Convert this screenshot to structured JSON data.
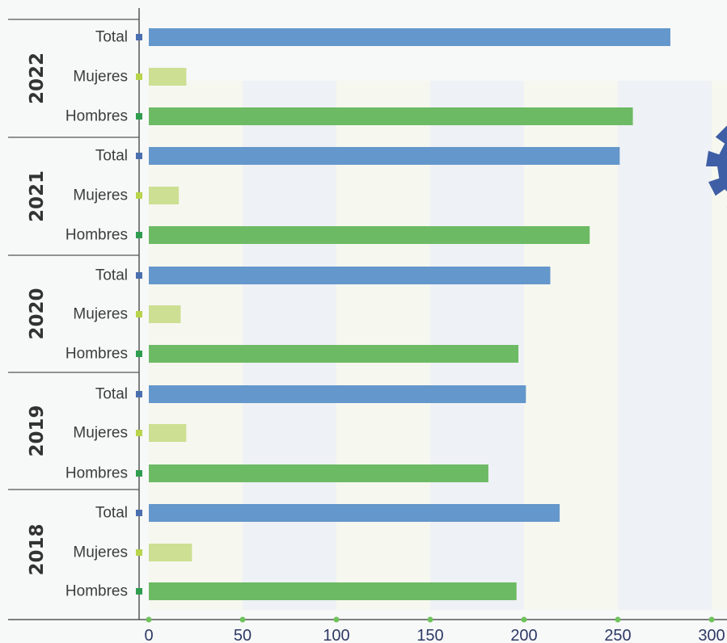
{
  "chart_data": {
    "type": "bar",
    "orientation": "horizontal",
    "groups": [
      {
        "year": "2022",
        "bars": [
          {
            "label": "Total",
            "value": 278
          },
          {
            "label": "Mujeres",
            "value": 20
          },
          {
            "label": "Hombres",
            "value": 258
          }
        ]
      },
      {
        "year": "2021",
        "bars": [
          {
            "label": "Total",
            "value": 251
          },
          {
            "label": "Mujeres",
            "value": 16
          },
          {
            "label": "Hombres",
            "value": 235
          }
        ]
      },
      {
        "year": "2020",
        "bars": [
          {
            "label": "Total",
            "value": 214
          },
          {
            "label": "Mujeres",
            "value": 17
          },
          {
            "label": "Hombres",
            "value": 197
          }
        ]
      },
      {
        "year": "2019",
        "bars": [
          {
            "label": "Total",
            "value": 201
          },
          {
            "label": "Mujeres",
            "value": 20
          },
          {
            "label": "Hombres",
            "value": 181
          }
        ]
      },
      {
        "year": "2018",
        "bars": [
          {
            "label": "Total",
            "value": 219
          },
          {
            "label": "Mujeres",
            "value": 23
          },
          {
            "label": "Hombres",
            "value": 196
          }
        ]
      }
    ],
    "xticks": [
      0,
      50,
      100,
      150,
      200,
      250,
      300
    ],
    "xlim": [
      0,
      300
    ],
    "title": "",
    "xlabel": "",
    "ylabel": "",
    "grid": false,
    "colors": {
      "Total": "#6497cb",
      "Mujeres": "#cddf92",
      "Hombres": "#6dba64",
      "Total_marker": "#4a6fb0",
      "Mujeres_marker": "#b8d44a",
      "Hombres_marker": "#2f9d4e",
      "axis": "#555555",
      "tick_dot": "#6ec35a",
      "gear": "#3e5fa5"
    },
    "decoration_icon": "gear-icon"
  }
}
